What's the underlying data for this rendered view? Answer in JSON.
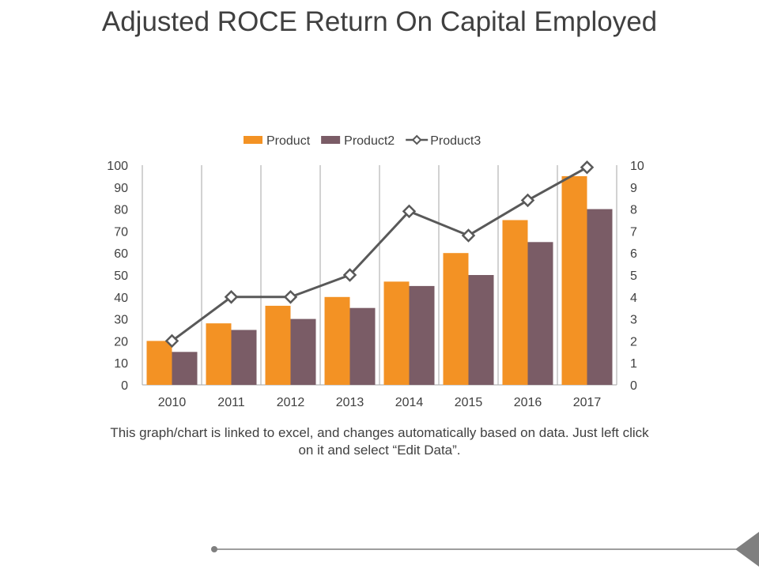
{
  "title": "Adjusted ROCE Return On Capital Employed",
  "caption": "This graph/chart is linked to excel, and changes automatically based on data. Just left click on it and select “Edit Data”.",
  "colors": {
    "product": "#F39224",
    "product2": "#7A5C66",
    "product3": "#595959",
    "gridline": "#A6A6A6",
    "text": "#404040"
  },
  "chart_data": {
    "type": "bar",
    "categories": [
      "2010",
      "2011",
      "2012",
      "2013",
      "2014",
      "2015",
      "2016",
      "2017"
    ],
    "series": [
      {
        "name": "Product",
        "type": "bar",
        "axis": "left",
        "values": [
          20,
          28,
          36,
          40,
          47,
          60,
          75,
          95
        ]
      },
      {
        "name": "Product2",
        "type": "bar",
        "axis": "left",
        "values": [
          15,
          25,
          30,
          35,
          45,
          50,
          65,
          80
        ]
      },
      {
        "name": "Product3",
        "type": "line",
        "axis": "right",
        "marker": "diamond",
        "values": [
          2,
          4,
          4,
          5,
          7.9,
          6.8,
          8.4,
          9.9
        ]
      }
    ],
    "ylim": [
      0,
      100
    ],
    "y2lim": [
      0,
      10
    ],
    "yticks": [
      "0",
      "10",
      "20",
      "30",
      "40",
      "50",
      "60",
      "70",
      "80",
      "90",
      "100"
    ],
    "y2ticks": [
      "0",
      "1",
      "2",
      "3",
      "4",
      "5",
      "6",
      "7",
      "8",
      "9",
      "10"
    ],
    "grid": "vertical",
    "legend_position": "top"
  }
}
